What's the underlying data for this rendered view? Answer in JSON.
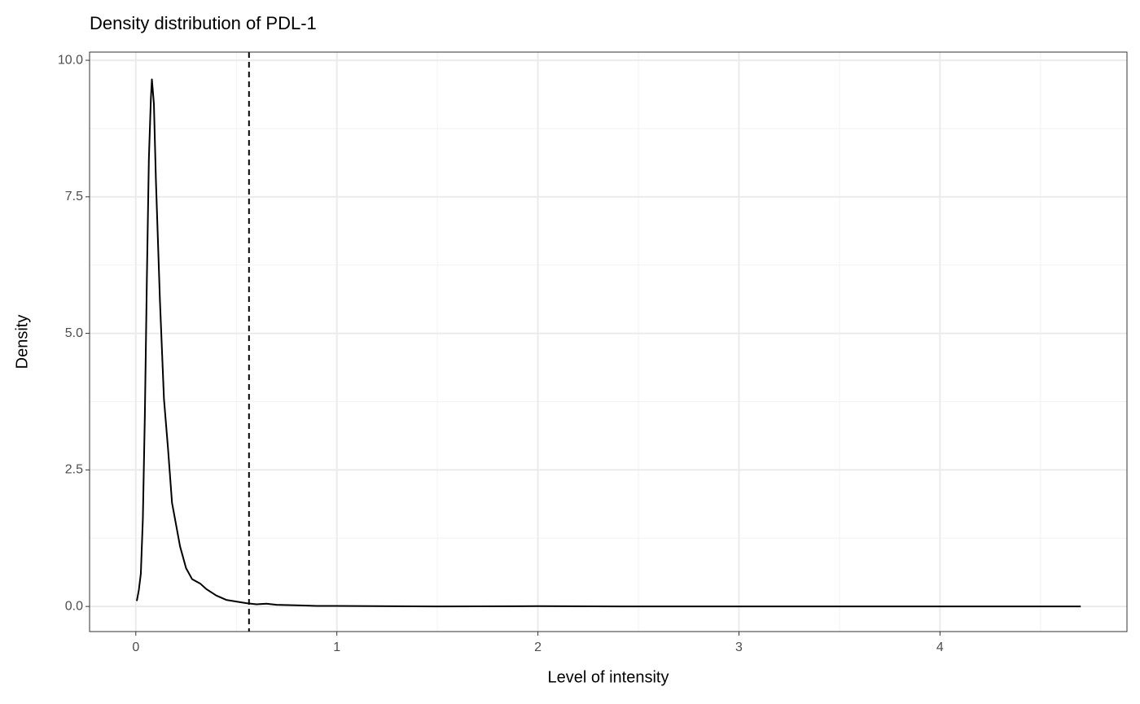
{
  "chart_data": {
    "type": "line",
    "title": "Density distribution of PDL-1",
    "x_label": "Level of intensity",
    "y_label": "Density",
    "x": [
      0.005,
      0.015,
      0.025,
      0.035,
      0.045,
      0.055,
      0.065,
      0.075,
      0.08,
      0.09,
      0.1,
      0.12,
      0.14,
      0.16,
      0.18,
      0.2,
      0.22,
      0.25,
      0.28,
      0.32,
      0.35,
      0.4,
      0.45,
      0.5,
      0.55,
      0.6,
      0.65,
      0.7,
      0.8,
      0.9,
      1.0,
      1.5,
      2.0,
      2.5,
      3.0,
      3.5,
      4.0,
      4.5,
      4.7
    ],
    "series": [
      {
        "name": "PDL-1",
        "color": "#000000",
        "values": [
          0.1,
          0.3,
          0.6,
          1.6,
          3.5,
          6,
          8.2,
          9.3,
          9.65,
          9.2,
          7.8,
          5.6,
          3.8,
          2.9,
          1.9,
          1.5,
          1.1,
          0.7,
          0.5,
          0.42,
          0.32,
          0.2,
          0.12,
          0.09,
          0.06,
          0.04,
          0.05,
          0.03,
          0.02,
          0.01,
          0.01,
          0,
          0.005,
          0,
          0,
          0,
          0,
          0,
          0
        ]
      }
    ],
    "vline": 0.563,
    "xlim": [
      -0.23,
      4.93
    ],
    "ylim": [
      -0.46,
      10.15
    ],
    "xticks": [
      0,
      1,
      2,
      3,
      4
    ],
    "yticks": [
      {
        "value": 0,
        "label": "0.0"
      },
      {
        "value": 2.5,
        "label": "2.5"
      },
      {
        "value": 5,
        "label": "5.0"
      },
      {
        "value": 7.5,
        "label": "7.5"
      },
      {
        "value": 10,
        "label": "10.0"
      }
    ],
    "xminor": [
      0.5,
      1.5,
      2.5,
      3.5,
      4.5
    ],
    "yminor": [
      1.25,
      3.75,
      6.25,
      8.75
    ],
    "grid": true
  }
}
